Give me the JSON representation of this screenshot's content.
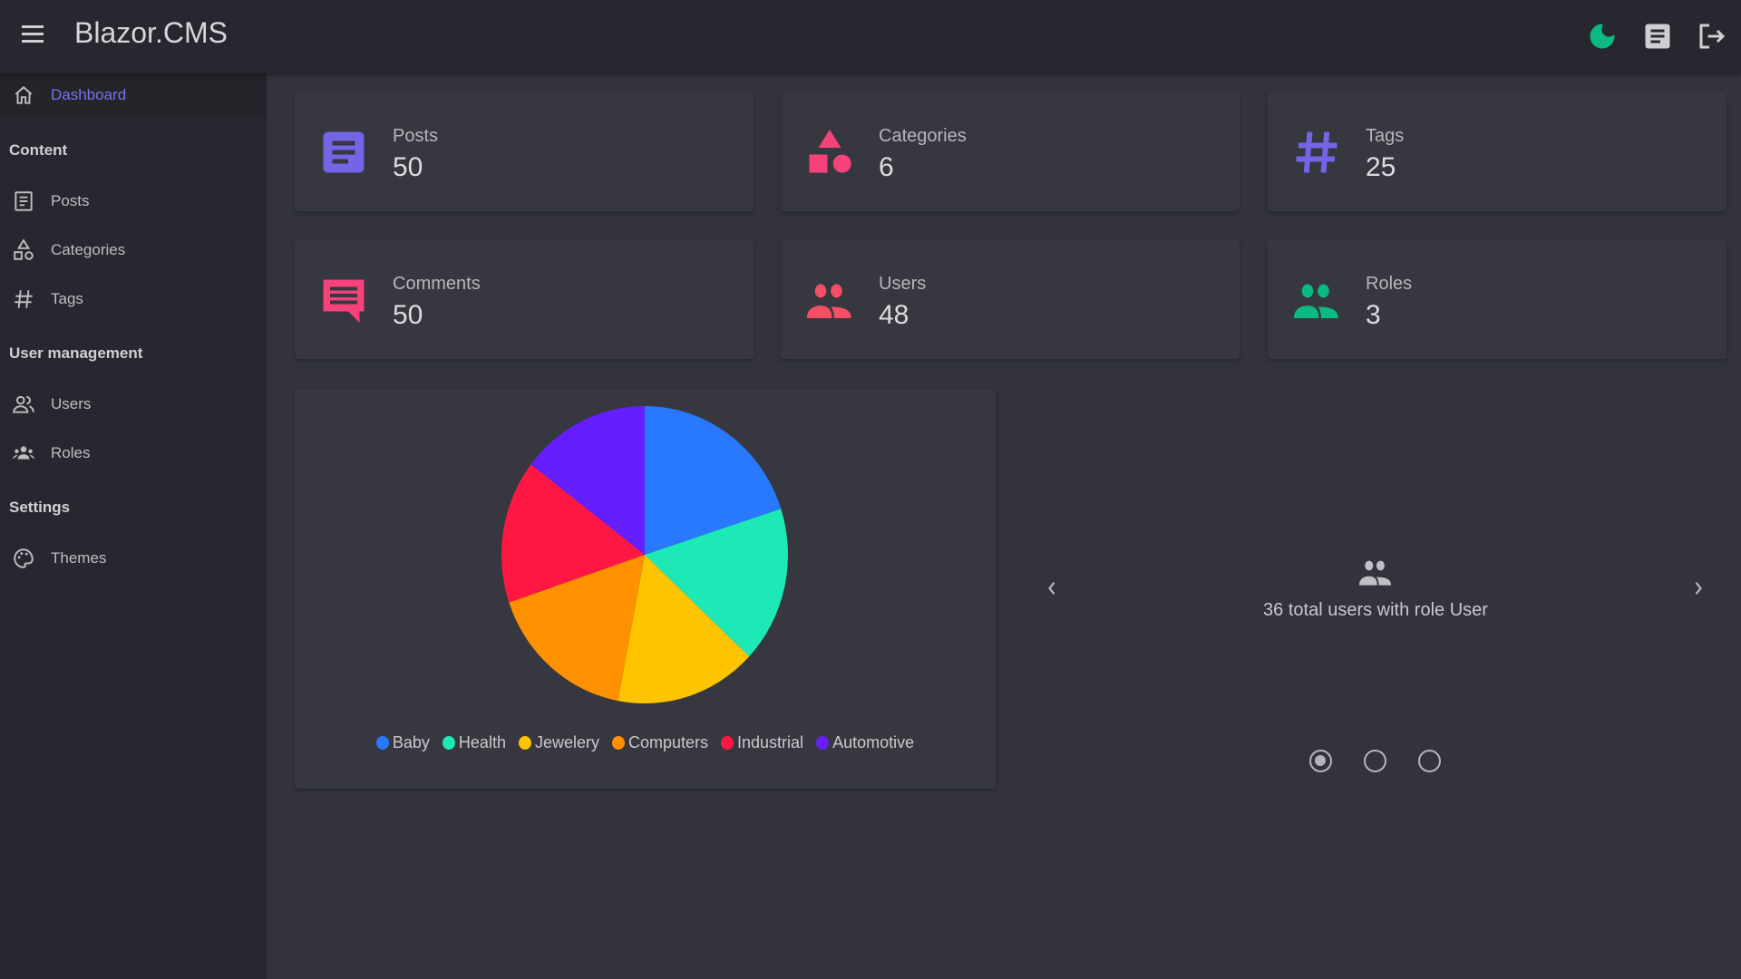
{
  "header": {
    "title": "Blazor.CMS"
  },
  "sidebar": {
    "dashboard": "Dashboard",
    "content": "Content",
    "posts": "Posts",
    "categories": "Categories",
    "tags": "Tags",
    "user_management": "User management",
    "users": "Users",
    "roles": "Roles",
    "settings": "Settings",
    "themes": "Themes"
  },
  "stats": [
    {
      "label": "Posts",
      "value": "50",
      "color": "#7265e6"
    },
    {
      "label": "Categories",
      "value": "6",
      "color": "#f6417a"
    },
    {
      "label": "Tags",
      "value": "25",
      "color": "#7265e6"
    },
    {
      "label": "Comments",
      "value": "50",
      "color": "#f6417a"
    },
    {
      "label": "Users",
      "value": "48",
      "color": "#f64e62"
    },
    {
      "label": "Roles",
      "value": "3",
      "color": "#0bba83"
    }
  ],
  "chart_data": {
    "type": "pie",
    "categories": [
      "Baby",
      "Health",
      "Jewelery",
      "Computers",
      "Industrial",
      "Automotive"
    ],
    "values": [
      10,
      8.5,
      8,
      8.4,
      7.8,
      7.3
    ],
    "colors": [
      "#2979ff",
      "#1de9b6",
      "#ffc400",
      "#ff9100",
      "#ff1744",
      "#651fff"
    ],
    "legend": "bottom"
  },
  "carousel": {
    "text": "36 total users with role User",
    "active_index": 0,
    "count": 3
  },
  "colors": {
    "accent": "#7e6ff0",
    "moon": "#0bba83"
  }
}
